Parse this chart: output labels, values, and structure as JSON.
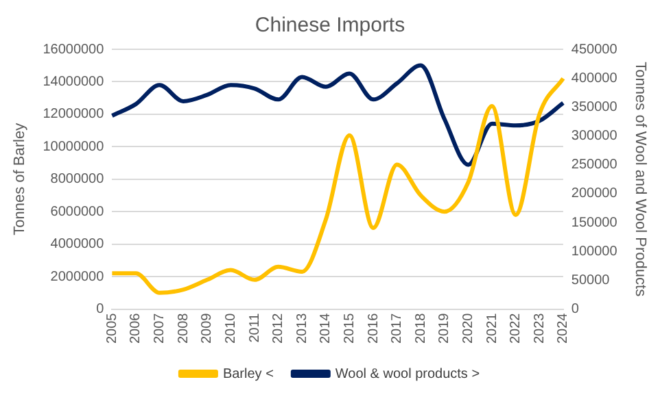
{
  "chart_data": {
    "type": "line",
    "title": "Chinese Imports",
    "ylabel": "Tonnes of Barley",
    "y2label": "Tonnes of Wool and Wool Products",
    "categories": [
      "2005",
      "2006",
      "2007",
      "2008",
      "2009",
      "2010",
      "2011",
      "2012",
      "2013",
      "2014",
      "2015",
      "2016",
      "2017",
      "2018",
      "2019",
      "2020",
      "2021",
      "2022",
      "2023",
      "2024"
    ],
    "series": [
      {
        "name": "Barley <",
        "color": "#ffc000",
        "values": [
          2200000,
          2200000,
          1000000,
          1200000,
          1800000,
          2400000,
          1800000,
          2600000,
          2300000,
          5500000,
          10700000,
          5000000,
          8900000,
          7000000,
          6000000,
          7800000,
          12500000,
          5800000,
          12000000,
          14200000
        ]
      },
      {
        "name": "Wool & wool products >",
        "color": "#002060",
        "axis": "y2",
        "values": [
          335000,
          355000,
          388000,
          360000,
          371000,
          388000,
          382000,
          363000,
          402000,
          385000,
          408000,
          363000,
          391000,
          422000,
          329000,
          250000,
          321000,
          318000,
          326000,
          357000
        ]
      }
    ],
    "ylim": [
      0,
      16000000
    ],
    "yticks": [
      0,
      2000000,
      4000000,
      6000000,
      8000000,
      10000000,
      12000000,
      14000000,
      16000000
    ],
    "y2lim": [
      0,
      450000
    ],
    "y2ticks": [
      0,
      50000,
      100000,
      150000,
      200000,
      250000,
      300000,
      350000,
      400000,
      450000
    ],
    "grid": "y",
    "legend": "bottom",
    "marker": "none",
    "line_style": "solid"
  }
}
